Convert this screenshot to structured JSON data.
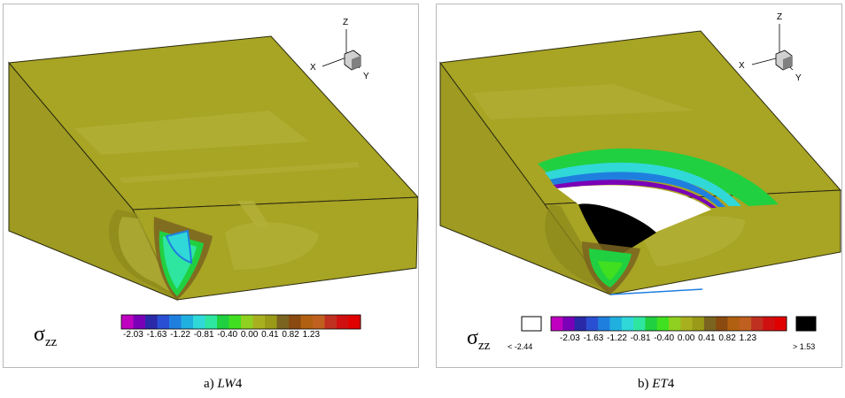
{
  "panels": [
    {
      "caption_prefix": "a) ",
      "caption_italic": "LW",
      "caption_suffix": "4",
      "legend": {
        "symbol": "σ",
        "subscript": "zz",
        "ticks": "-2.03 -1.63 -1.22 -0.81 -0.40 0.00 0.41 0.82 1.23"
      },
      "axes": {
        "x": "X",
        "y": "Y",
        "z": "Z"
      }
    },
    {
      "caption_prefix": "b) ",
      "caption_italic": "ET",
      "caption_suffix": "4",
      "legend": {
        "symbol": "σ",
        "subscript": "zz",
        "ticks": "-2.03 -1.63 -1.22 -0.81 -0.40 0.00 0.41 0.82 1.23",
        "below_label": "< -2.44",
        "above_label": "> 1.53"
      },
      "axes": {
        "x": "X",
        "y": "Y",
        "z": "Z"
      }
    }
  ],
  "colormap": [
    "#c000c0",
    "#7a00b8",
    "#2a2aa8",
    "#2a4fd2",
    "#1f7fdf",
    "#20b0e0",
    "#30d8d8",
    "#2ee6a0",
    "#20d040",
    "#40e020",
    "#8fd020",
    "#a8b020",
    "#9a9a18",
    "#7a6420",
    "#8a4a10",
    "#b06010",
    "#c06020",
    "#c03020",
    "#d01010",
    "#e00000"
  ],
  "colors": {
    "body_fill": "#a8a424",
    "body_dark": "#8e8a1c",
    "body_light": "#b4b03a",
    "below_color": "#ffffff",
    "above_color": "#000000"
  }
}
